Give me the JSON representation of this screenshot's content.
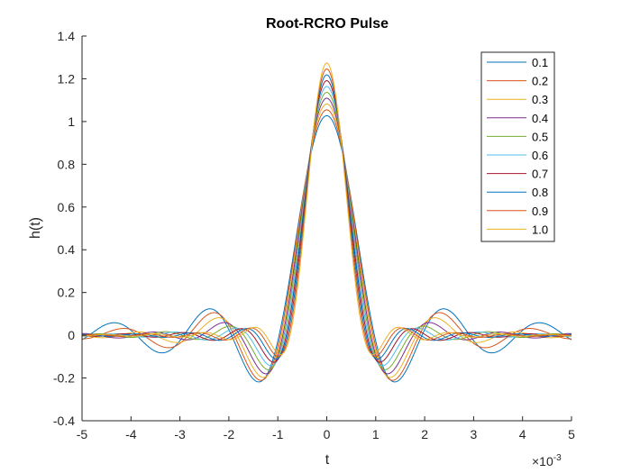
{
  "chart_data": {
    "type": "line",
    "title": "Root-RCRO Pulse",
    "xlabel": "t",
    "ylabel": "h(t)",
    "x_exponent_base": "×10",
    "x_exponent_power": "-3",
    "xlim": [
      -5,
      5
    ],
    "ylim": [
      -0.4,
      1.4
    ],
    "xticks": [
      -5,
      -4,
      -3,
      -2,
      -1,
      0,
      1,
      2,
      3,
      4,
      5
    ],
    "xtick_labels": [
      "-5",
      "-4",
      "-3",
      "-2",
      "-1",
      "0",
      "1",
      "2",
      "3",
      "4",
      "5"
    ],
    "yticks": [
      -0.4,
      -0.2,
      0,
      0.2,
      0.4,
      0.6,
      0.8,
      1,
      1.2,
      1.4
    ],
    "ytick_labels": [
      "-0.4",
      "-0.2",
      "0",
      "0.2",
      "0.4",
      "0.6",
      "0.8",
      "1",
      "1.2",
      "1.4"
    ],
    "grid": false,
    "legend_position": "top-right",
    "series": [
      {
        "name": "0.1",
        "color": "#0072BD",
        "beta": 0.1
      },
      {
        "name": "0.2",
        "color": "#D95319",
        "beta": 0.2
      },
      {
        "name": "0.3",
        "color": "#EDB120",
        "beta": 0.3
      },
      {
        "name": "0.4",
        "color": "#7E2F8E",
        "beta": 0.4
      },
      {
        "name": "0.5",
        "color": "#77AC30",
        "beta": 0.5
      },
      {
        "name": "0.6",
        "color": "#4DBEEE",
        "beta": 0.6
      },
      {
        "name": "0.7",
        "color": "#A2142F",
        "beta": 0.7
      },
      {
        "name": "0.8",
        "color": "#0072BD",
        "beta": 0.8
      },
      {
        "name": "0.9",
        "color": "#D95319",
        "beta": 0.9
      },
      {
        "name": "1.0",
        "color": "#EDB120",
        "beta": 1.0
      }
    ],
    "peak_values": [
      1.03,
      1.06,
      1.1,
      1.13,
      1.16,
      1.19,
      1.21,
      1.23,
      1.25,
      1.27
    ]
  }
}
